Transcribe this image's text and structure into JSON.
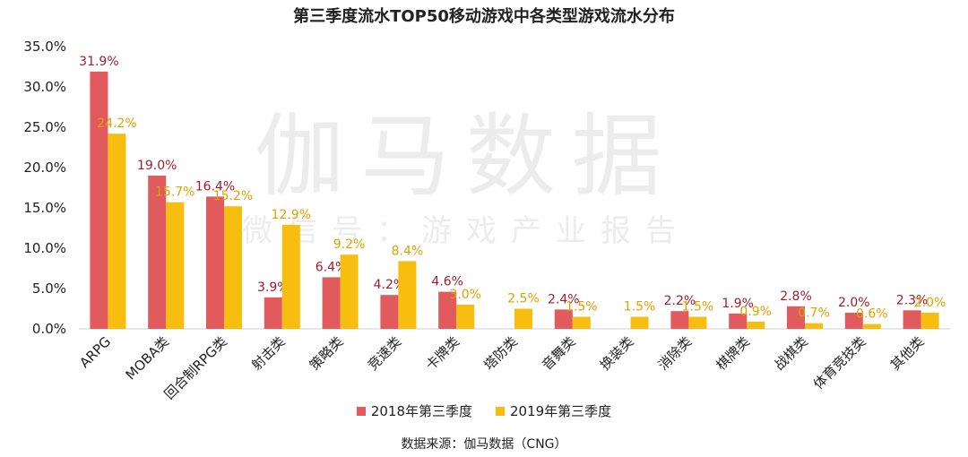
{
  "chart_data": {
    "type": "bar",
    "title": "第三季度流水TOP50移动游戏中各类型游戏流水分布",
    "categories": [
      "ARPG",
      "MOBA类",
      "回合制RPG类",
      "射击类",
      "策略类",
      "竞速类",
      "卡牌类",
      "塔防类",
      "音舞类",
      "换装类",
      "消除类",
      "棋牌类",
      "战棋类",
      "体育竞技类",
      "其他类"
    ],
    "series": [
      {
        "name": "2018年第三季度",
        "color": "#e05a5e",
        "values": [
          31.9,
          19.0,
          16.4,
          3.9,
          6.4,
          4.2,
          4.6,
          null,
          2.4,
          null,
          2.2,
          1.9,
          2.8,
          2.0,
          2.3
        ],
        "labels": [
          "31.9%",
          "19.0%",
          "16.4%",
          "3.9%",
          "6.4%",
          "4.2%",
          "4.6%",
          "",
          "2.4%",
          "",
          "2.2%",
          "1.9%",
          "2.8%",
          "2.0%",
          "2.3%"
        ],
        "label_color": "#a11d2b"
      },
      {
        "name": "2019年第三季度",
        "color": "#f7bd0f",
        "values": [
          24.2,
          15.7,
          15.2,
          12.9,
          9.2,
          8.4,
          3.0,
          2.5,
          1.5,
          1.5,
          1.5,
          0.9,
          0.7,
          0.6,
          2.0
        ],
        "labels": [
          "24.2%",
          "15.7%",
          "15.2%",
          "12.9%",
          "9.2%",
          "8.4%",
          "3.0%",
          "2.5%",
          "1.5%",
          "1.5%",
          "1.5%",
          "0.9%",
          "0.7%",
          "0.6%",
          "2.0%"
        ],
        "label_color": "#e2a100"
      }
    ],
    "yticks": [
      "0.0%",
      "5.0%",
      "10.0%",
      "15.0%",
      "20.0%",
      "25.0%",
      "30.0%",
      "35.0%"
    ],
    "ylim": [
      0,
      35
    ],
    "legend_position": "bottom",
    "grid": false
  },
  "watermark": {
    "main": "伽马数据",
    "sub": "微信号：游戏产业报告"
  },
  "source": "数据来源：伽马数据（CNG）"
}
